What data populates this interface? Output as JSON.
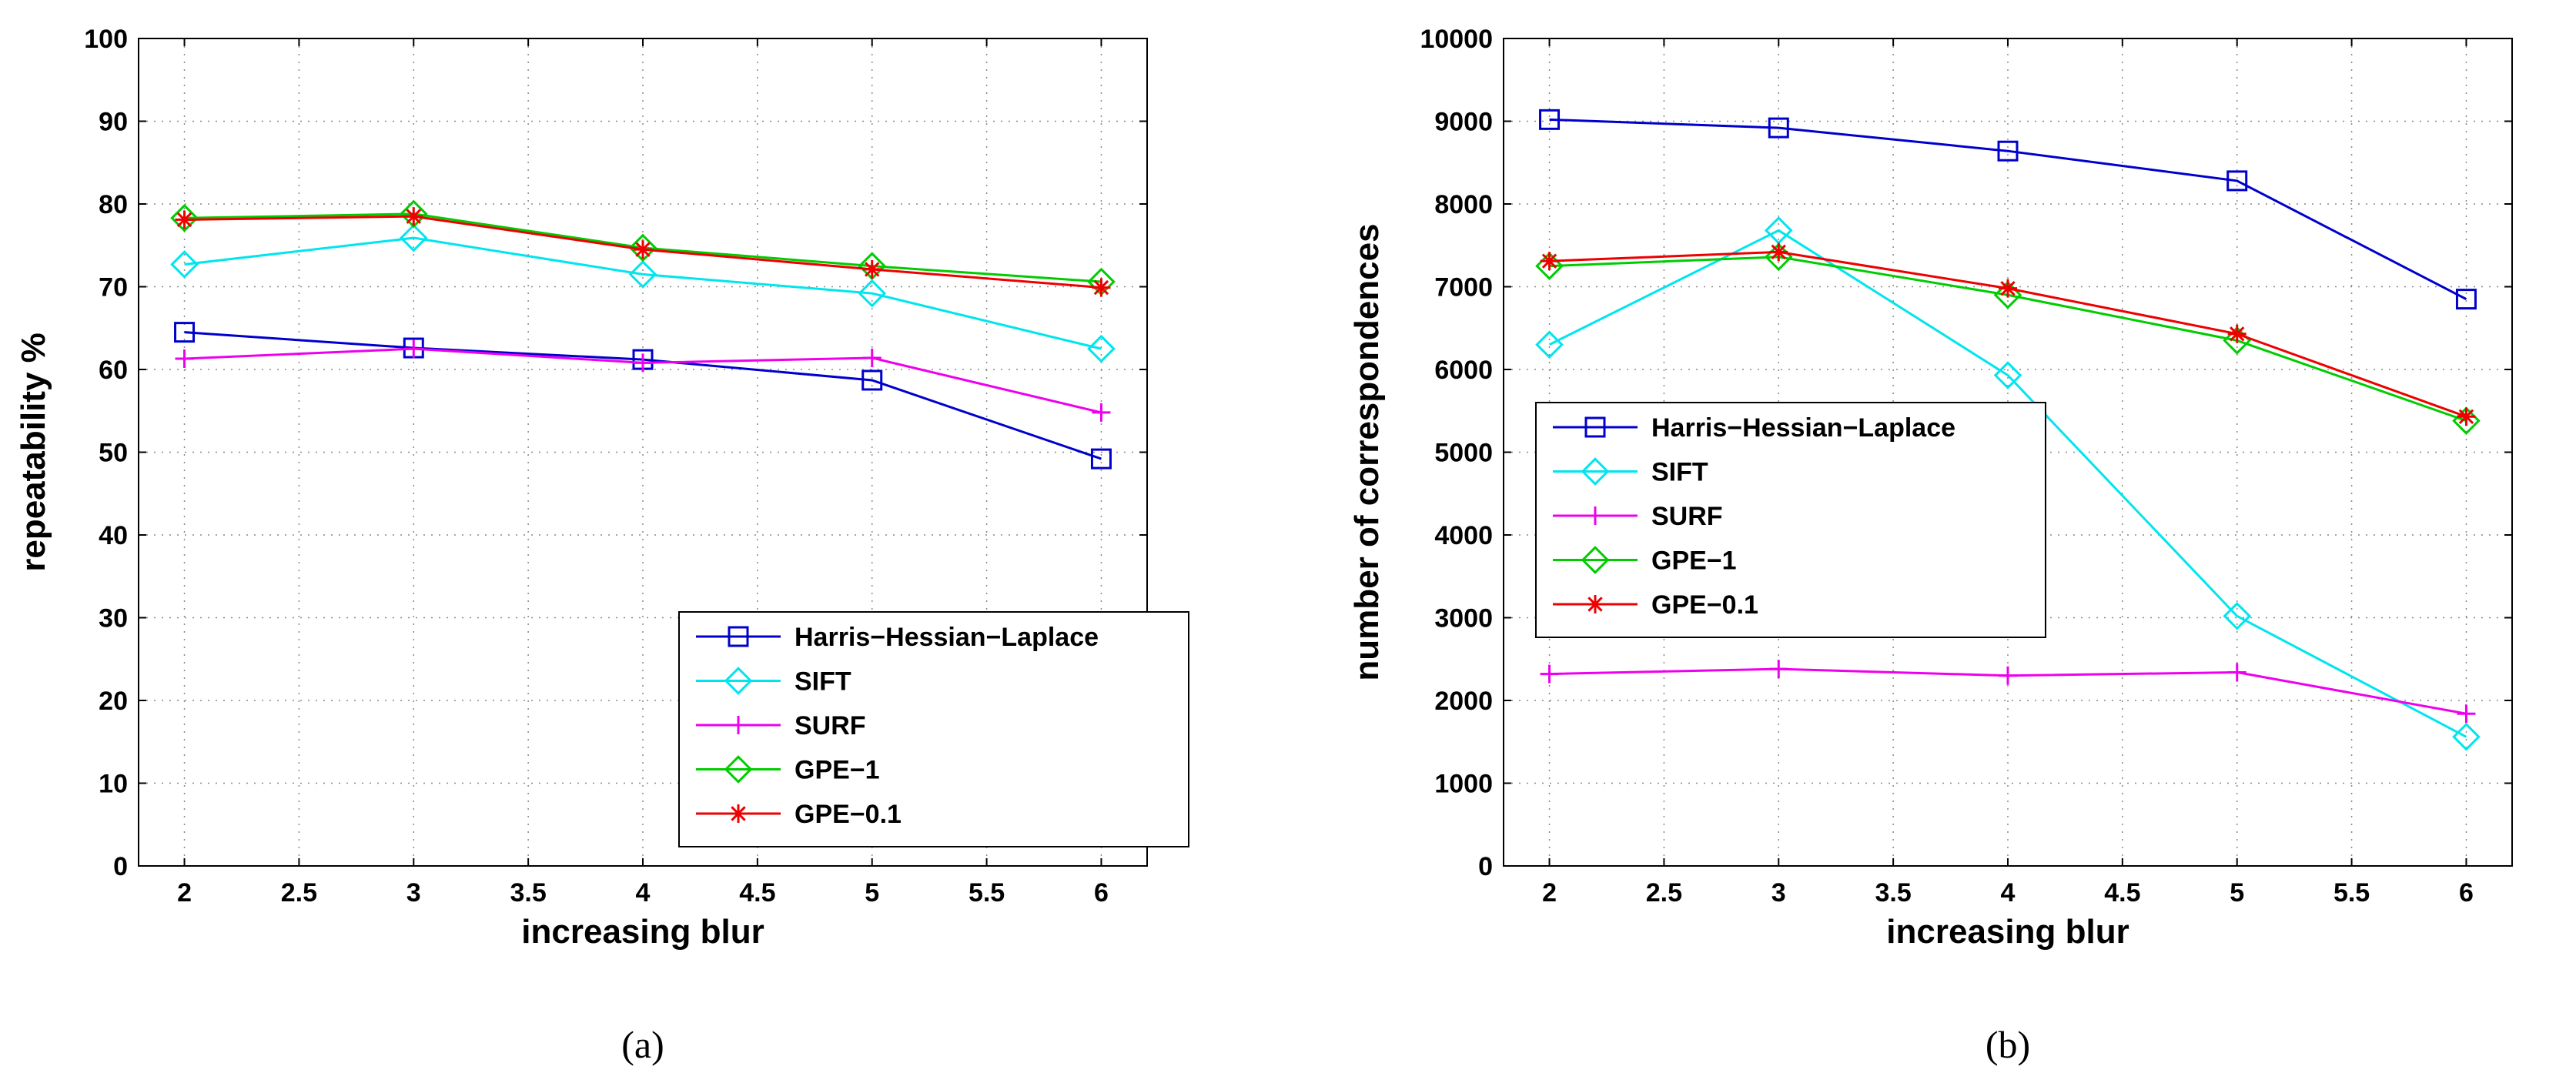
{
  "chart_data": [
    {
      "type": "line",
      "caption": "(a)",
      "x": [
        2,
        3,
        4,
        5,
        6
      ],
      "xlabel": "increasing blur",
      "ylabel": "repeatability %",
      "xlim": [
        1.8,
        6.2
      ],
      "ylim": [
        0,
        100
      ],
      "xticks": [
        2,
        2.5,
        3,
        3.5,
        4,
        4.5,
        5,
        5.5,
        6
      ],
      "xtick_labels": [
        "2",
        "2.5",
        "3",
        "3.5",
        "4",
        "4.5",
        "5",
        "5.5",
        "6"
      ],
      "yticks": [
        0,
        10,
        20,
        30,
        40,
        50,
        60,
        70,
        80,
        90,
        100
      ],
      "ytick_labels": [
        "0",
        "10",
        "20",
        "30",
        "40",
        "50",
        "60",
        "70",
        "80",
        "90",
        "100"
      ],
      "grid": true,
      "legend_position": "bottom-right",
      "series": [
        {
          "name": "Harris−Hessian−Laplace",
          "color": "#0000cc",
          "marker": "square",
          "values": [
            64.5,
            62.6,
            61.2,
            58.7,
            49.2
          ]
        },
        {
          "name": "SIFT",
          "color": "#00e5ee",
          "marker": "diamond",
          "values": [
            72.7,
            75.9,
            71.5,
            69.2,
            62.5
          ]
        },
        {
          "name": "SURF",
          "color": "#ee00ee",
          "marker": "plus",
          "values": [
            61.3,
            62.5,
            60.8,
            61.4,
            54.8
          ]
        },
        {
          "name": "GPE−1",
          "color": "#00cc00",
          "marker": "diamond",
          "values": [
            78.3,
            78.8,
            74.7,
            72.5,
            70.6
          ]
        },
        {
          "name": "GPE−0.1",
          "color": "#ee0000",
          "marker": "star",
          "values": [
            78.1,
            78.5,
            74.5,
            72.1,
            69.9
          ]
        }
      ]
    },
    {
      "type": "line",
      "caption": "(b)",
      "x": [
        2,
        3,
        4,
        5,
        6
      ],
      "xlabel": "increasing blur",
      "ylabel": "number of correspondences",
      "xlim": [
        1.8,
        6.2
      ],
      "ylim": [
        0,
        10000
      ],
      "xticks": [
        2,
        2.5,
        3,
        3.5,
        4,
        4.5,
        5,
        5.5,
        6
      ],
      "xtick_labels": [
        "2",
        "2.5",
        "3",
        "3.5",
        "4",
        "4.5",
        "5",
        "5.5",
        "6"
      ],
      "yticks": [
        0,
        1000,
        2000,
        3000,
        4000,
        5000,
        6000,
        7000,
        8000,
        9000,
        10000
      ],
      "ytick_labels": [
        "0",
        "1000",
        "2000",
        "3000",
        "4000",
        "5000",
        "6000",
        "7000",
        "8000",
        "9000",
        "10000"
      ],
      "grid": true,
      "legend_position": "middle-left",
      "series": [
        {
          "name": "Harris−Hessian−Laplace",
          "color": "#0000cc",
          "marker": "square",
          "values": [
            9020,
            8920,
            8640,
            8280,
            6850
          ]
        },
        {
          "name": "SIFT",
          "color": "#00e5ee",
          "marker": "diamond",
          "values": [
            6300,
            7680,
            5930,
            3020,
            1560
          ]
        },
        {
          "name": "SURF",
          "color": "#ee00ee",
          "marker": "plus",
          "values": [
            2320,
            2380,
            2300,
            2340,
            1840
          ]
        },
        {
          "name": "GPE−1",
          "color": "#00cc00",
          "marker": "diamond",
          "values": [
            7250,
            7360,
            6900,
            6350,
            5380
          ]
        },
        {
          "name": "GPE−0.1",
          "color": "#ee0000",
          "marker": "star",
          "values": [
            7310,
            7420,
            6980,
            6430,
            5430
          ]
        }
      ]
    }
  ]
}
